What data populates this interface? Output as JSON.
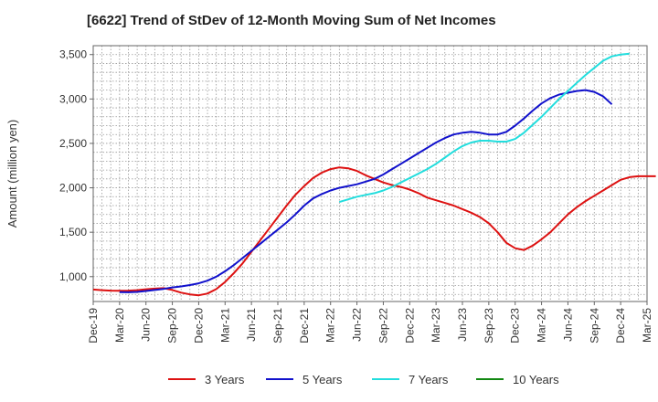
{
  "chart_data": {
    "type": "line",
    "title": "[6622]  Trend of StDev of 12-Month Moving Sum of Net Incomes",
    "ylabel": "Amount (million yen)",
    "xlabel": "",
    "ylim": [
      720,
      3600
    ],
    "yticks": [
      1000,
      1500,
      2000,
      2500,
      3000,
      3500
    ],
    "ytick_labels": [
      "1,000",
      "1,500",
      "2,000",
      "2,500",
      "3,000",
      "3,500"
    ],
    "x_start": "Dec-19",
    "x_categories": [
      "Dec-19",
      "Mar-20",
      "Jun-20",
      "Sep-20",
      "Dec-20",
      "Mar-21",
      "Jun-21",
      "Sep-21",
      "Dec-21",
      "Mar-22",
      "Jun-22",
      "Sep-22",
      "Dec-22",
      "Mar-23",
      "Jun-23",
      "Sep-23",
      "Dec-23",
      "Mar-24",
      "Jun-24",
      "Sep-24",
      "Dec-24",
      "Mar-25"
    ],
    "grid": true,
    "legend_position": "bottom",
    "series": [
      {
        "name": "3 Years",
        "color": "#dd1111",
        "start_index": 0,
        "values": [
          855,
          848,
          842,
          840,
          842,
          848,
          858,
          865,
          870,
          850,
          820,
          800,
          790,
          810,
          860,
          940,
          1040,
          1150,
          1280,
          1410,
          1540,
          1670,
          1800,
          1920,
          2020,
          2110,
          2170,
          2210,
          2230,
          2220,
          2190,
          2140,
          2100,
          2060,
          2030,
          2010,
          1980,
          1940,
          1890,
          1860,
          1830,
          1800,
          1760,
          1720,
          1670,
          1600,
          1500,
          1380,
          1320,
          1300,
          1350,
          1420,
          1500,
          1600,
          1700,
          1780,
          1850,
          1910,
          1970,
          2030,
          2090,
          2120,
          2130,
          2130,
          2130
        ]
      },
      {
        "name": "5 Years",
        "color": "#1111cc",
        "start_index": 0,
        "values": [
          null,
          null,
          null,
          825,
          824,
          828,
          838,
          850,
          862,
          878,
          890,
          905,
          925,
          955,
          1000,
          1060,
          1130,
          1210,
          1290,
          1370,
          1450,
          1530,
          1610,
          1700,
          1800,
          1880,
          1930,
          1970,
          2000,
          2020,
          2040,
          2070,
          2100,
          2150,
          2210,
          2270,
          2330,
          2390,
          2450,
          2510,
          2560,
          2600,
          2620,
          2630,
          2620,
          2600,
          2600,
          2630,
          2700,
          2780,
          2870,
          2950,
          3010,
          3050,
          3070,
          3090,
          3100,
          3080,
          3030,
          2940
        ]
      },
      {
        "name": "7 Years",
        "color": "#22dddd",
        "start_index": 0,
        "values": [
          null,
          null,
          null,
          null,
          null,
          null,
          null,
          null,
          null,
          null,
          null,
          null,
          null,
          null,
          null,
          null,
          null,
          null,
          null,
          null,
          null,
          null,
          null,
          null,
          null,
          null,
          null,
          null,
          1840,
          1870,
          1900,
          1920,
          1940,
          1970,
          2010,
          2060,
          2110,
          2160,
          2210,
          2270,
          2340,
          2410,
          2470,
          2510,
          2530,
          2530,
          2520,
          2520,
          2550,
          2620,
          2710,
          2800,
          2900,
          3000,
          3090,
          3180,
          3270,
          3350,
          3430,
          3480,
          3500,
          3510
        ]
      },
      {
        "name": "10 Years",
        "color": "#118811",
        "start_index": 0,
        "values": []
      }
    ]
  }
}
